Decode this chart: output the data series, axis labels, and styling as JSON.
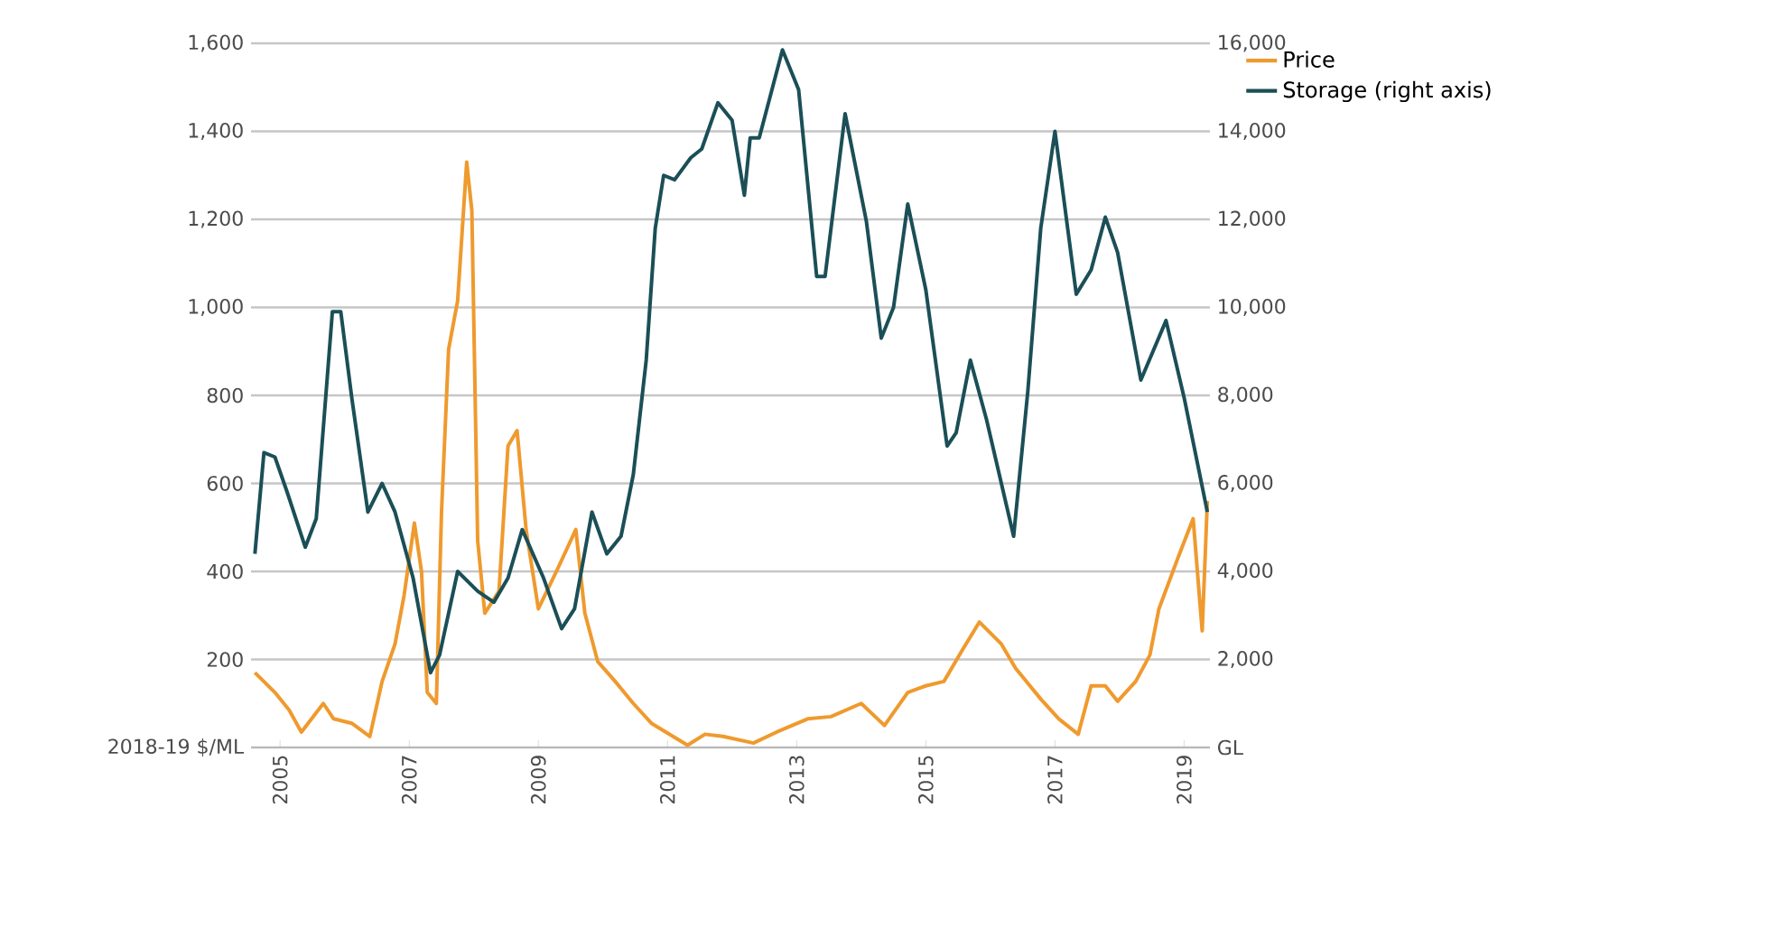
{
  "chart_data": {
    "type": "line",
    "series": [
      {
        "name": "Price",
        "color": "#ef9a2e",
        "axis": "y",
        "x": [
          2004.61,
          2004.92,
          2005.14,
          2005.33,
          2005.67,
          2005.83,
          2006.11,
          2006.39,
          2006.58,
          2006.78,
          2006.92,
          2007.08,
          2007.19,
          2007.28,
          2007.42,
          2007.5,
          2007.61,
          2007.75,
          2007.89,
          2007.97,
          2008.06,
          2008.17,
          2008.39,
          2008.53,
          2008.67,
          2008.81,
          2009.0,
          2009.28,
          2009.58,
          2009.72,
          2009.92,
          2010.19,
          2010.47,
          2010.75,
          2011.03,
          2011.31,
          2011.58,
          2011.86,
          2012.33,
          2012.69,
          2013.17,
          2013.53,
          2014.0,
          2014.36,
          2014.72,
          2015.0,
          2015.28,
          2015.56,
          2015.83,
          2016.17,
          2016.39,
          2016.78,
          2017.06,
          2017.36,
          2017.56,
          2017.78,
          2017.97,
          2018.25,
          2018.47,
          2018.61,
          2018.89,
          2019.14,
          2019.28,
          2019.36
        ],
        "values": [
          170,
          125,
          85,
          35,
          100,
          65,
          55,
          25,
          150,
          235,
          345,
          510,
          400,
          125,
          100,
          535,
          905,
          1015,
          1330,
          1220,
          470,
          305,
          355,
          685,
          720,
          495,
          315,
          400,
          495,
          305,
          195,
          150,
          100,
          55,
          30,
          5,
          30,
          25,
          10,
          35,
          65,
          70,
          100,
          50,
          125,
          140,
          150,
          220,
          285,
          235,
          180,
          110,
          65,
          30,
          140,
          140,
          105,
          150,
          210,
          315,
          425,
          520,
          265,
          560
        ]
      },
      {
        "name": "Storage (right axis)",
        "color": "#1b4f57",
        "axis": "y2",
        "x": [
          2004.61,
          2004.75,
          2004.92,
          2005.11,
          2005.39,
          2005.56,
          2005.81,
          2005.94,
          2006.11,
          2006.36,
          2006.58,
          2006.78,
          2007.06,
          2007.33,
          2007.47,
          2007.75,
          2008.06,
          2008.31,
          2008.53,
          2008.75,
          2009.08,
          2009.36,
          2009.56,
          2009.83,
          2010.06,
          2010.28,
          2010.47,
          2010.67,
          2010.81,
          2010.94,
          2011.11,
          2011.36,
          2011.53,
          2011.78,
          2012.0,
          2012.19,
          2012.28,
          2012.42,
          2012.78,
          2013.03,
          2013.31,
          2013.44,
          2013.75,
          2014.08,
          2014.31,
          2014.5,
          2014.72,
          2015.0,
          2015.33,
          2015.47,
          2015.69,
          2015.94,
          2016.36,
          2016.58,
          2016.78,
          2017.0,
          2017.33,
          2017.56,
          2017.78,
          2017.97,
          2018.33,
          2018.72,
          2019.0,
          2019.36
        ],
        "values": [
          4400,
          6700,
          6600,
          5800,
          4550,
          5200,
          9900,
          9900,
          7950,
          5350,
          6000,
          5350,
          3850,
          1700,
          2100,
          4000,
          3550,
          3300,
          3850,
          4950,
          3850,
          2700,
          3150,
          5350,
          4400,
          4800,
          6200,
          8800,
          11800,
          13000,
          12900,
          13400,
          13600,
          14650,
          14250,
          12550,
          13850,
          13850,
          15850,
          14950,
          10700,
          10700,
          14400,
          11950,
          9300,
          10000,
          12350,
          10400,
          6850,
          7150,
          8800,
          7450,
          4800,
          8100,
          11800,
          14000,
          10300,
          10850,
          12050,
          11250,
          8350,
          9700,
          7950,
          5350
        ]
      }
    ],
    "xlim": [
      2004.55,
      2019.4
    ],
    "xticks": [
      2005,
      2007,
      2009,
      2011,
      2013,
      2015,
      2017,
      2019
    ],
    "ylim": [
      0,
      1600
    ],
    "yticks": [
      {
        "value": 0,
        "label": "2018-19 $/ML"
      },
      200,
      400,
      600,
      800,
      {
        "value": 1000,
        "label": "1,000"
      },
      {
        "value": 1200,
        "label": "1,200"
      },
      {
        "value": 1400,
        "label": "1,400"
      },
      {
        "value": 1600,
        "label": "1,600"
      }
    ],
    "y2lim": [
      0,
      16000
    ],
    "y2ticks": [
      {
        "value": 0,
        "label": "GL"
      },
      {
        "value": 2000,
        "label": "2,000"
      },
      {
        "value": 4000,
        "label": "4,000"
      },
      {
        "value": 6000,
        "label": "6,000"
      },
      {
        "value": 8000,
        "label": "8,000"
      },
      {
        "value": 10000,
        "label": "10,000"
      },
      {
        "value": 12000,
        "label": "12,000"
      },
      {
        "value": 14000,
        "label": "14,000"
      },
      {
        "value": 16000,
        "label": "16,000"
      }
    ],
    "grid": "y",
    "legend": "top right",
    "marker": "none"
  }
}
